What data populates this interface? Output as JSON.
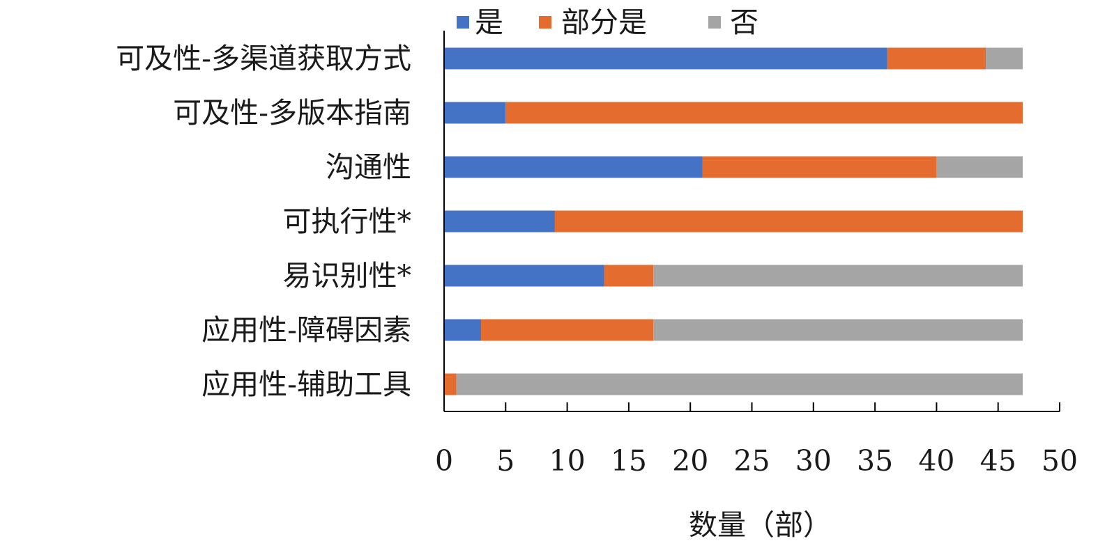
{
  "chart_data": {
    "type": "bar",
    "orientation": "horizontal",
    "stacked": true,
    "categories": [
      "可及性-多渠道获取方式",
      "可及性-多版本指南",
      "沟通性",
      "可执行性*",
      "易识别性*",
      "应用性-障碍因素",
      "应用性-辅助工具"
    ],
    "series": [
      {
        "name": "是",
        "color": "#4472C4",
        "values": [
          36,
          5,
          21,
          9,
          13,
          3,
          0
        ]
      },
      {
        "name": "部分是",
        "color": "#E46C2F",
        "values": [
          8,
          42,
          19,
          38,
          4,
          14,
          1
        ]
      },
      {
        "name": "否",
        "color": "#A5A5A5",
        "values": [
          3,
          0,
          7,
          0,
          30,
          30,
          46
        ]
      }
    ],
    "xlim": [
      0,
      50
    ],
    "xticks": [
      0,
      5,
      10,
      15,
      20,
      25,
      30,
      35,
      40,
      45,
      50
    ],
    "xlabel": "数量（部）",
    "ylabel": "",
    "title": "",
    "legend_position": "top",
    "grid": false
  }
}
